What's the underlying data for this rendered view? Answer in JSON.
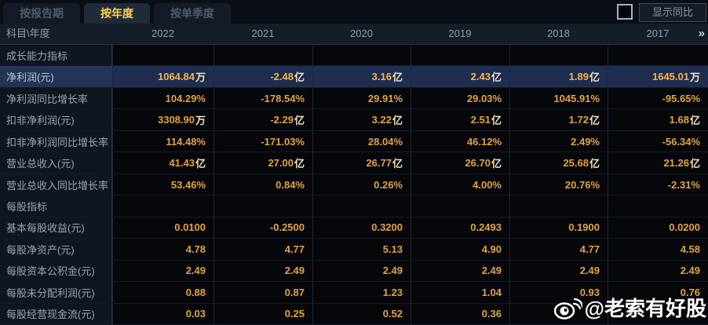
{
  "tabs": [
    {
      "id": "report-period",
      "label": "按报告期",
      "active": false
    },
    {
      "id": "annual",
      "label": "按年度",
      "active": true
    },
    {
      "id": "quarterly",
      "label": "按单季度",
      "active": false
    }
  ],
  "controls": {
    "show_yoy_label": "显示同比",
    "checkbox_checked": false
  },
  "table": {
    "corner_label": "科目\\年度",
    "years": [
      "2022",
      "2021",
      "2020",
      "2019",
      "2018",
      "2017"
    ],
    "more_icon": "»",
    "rows": [
      {
        "type": "section",
        "label": "成长能力指标",
        "values": [
          "",
          "",
          "",
          "",
          "",
          ""
        ]
      },
      {
        "type": "data",
        "highlight": true,
        "label": "净利润(元)",
        "values": [
          "1064.84万",
          "-2.48亿",
          "3.16亿",
          "2.43亿",
          "1.89亿",
          "1645.01万"
        ]
      },
      {
        "type": "data",
        "label": "净利润同比增长率",
        "values": [
          "104.29%",
          "-178.54%",
          "29.91%",
          "29.03%",
          "1045.91%",
          "-95.65%"
        ]
      },
      {
        "type": "data",
        "label": "扣非净利润(元)",
        "values": [
          "3308.90万",
          "-2.29亿",
          "3.22亿",
          "2.51亿",
          "1.72亿",
          "1.68亿"
        ]
      },
      {
        "type": "data",
        "label": "扣非净利润同比增长率",
        "values": [
          "114.48%",
          "-171.03%",
          "28.04%",
          "46.12%",
          "2.49%",
          "-56.34%"
        ]
      },
      {
        "type": "data",
        "label": "营业总收入(元)",
        "values": [
          "41.43亿",
          "27.00亿",
          "26.77亿",
          "26.70亿",
          "25.68亿",
          "21.26亿"
        ]
      },
      {
        "type": "data",
        "label": "营业总收入同比增长率",
        "values": [
          "53.46%",
          "0.84%",
          "0.26%",
          "4.00%",
          "20.76%",
          "-2.31%"
        ]
      },
      {
        "type": "section",
        "label": "每股指标",
        "values": [
          "",
          "",
          "",
          "",
          "",
          ""
        ]
      },
      {
        "type": "data",
        "label": "基本每股收益(元)",
        "values": [
          "0.0100",
          "-0.2500",
          "0.3200",
          "0.2493",
          "0.1900",
          "0.0200"
        ]
      },
      {
        "type": "data",
        "label": "每股净资产(元)",
        "values": [
          "4.78",
          "4.77",
          "5.13",
          "4.90",
          "4.77",
          "4.58"
        ]
      },
      {
        "type": "data",
        "label": "每股资本公积金(元)",
        "values": [
          "2.49",
          "2.49",
          "2.49",
          "2.49",
          "2.49",
          "2.49"
        ]
      },
      {
        "type": "data",
        "label": "每股未分配利润(元)",
        "values": [
          "0.88",
          "0.87",
          "1.23",
          "1.04",
          "0.93",
          "0.76"
        ]
      },
      {
        "type": "data",
        "label": "每股经营现金流(元)",
        "values": [
          "0.03",
          "0.25",
          "0.52",
          "0.36",
          "",
          ""
        ]
      }
    ]
  },
  "watermark": {
    "text": "@老索有好股"
  },
  "colors": {
    "value_gold": "#e3a33c",
    "highlight_value_gold": "#f6b44a",
    "active_tab_text": "#ffd14b",
    "highlight_row_bg": "#1f2e50",
    "label_text": "#97a5b4",
    "header_bg": "#151d29"
  }
}
